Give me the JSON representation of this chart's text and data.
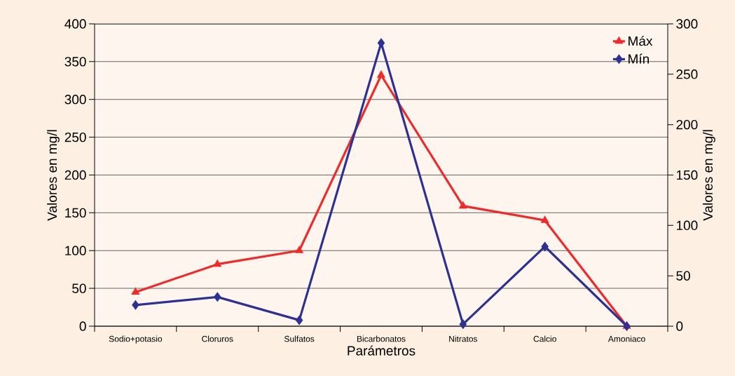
{
  "chart_data": {
    "type": "line",
    "xlabel": "Parámetros",
    "ylabel": "Valores en mg/l",
    "y2label": "Valores en mg/l",
    "categories": [
      "Sodio+potasio",
      "Cloruros",
      "Sulfatos",
      "Bicarbonatos",
      "Nitratos",
      "Calcio",
      "Amoniaco"
    ],
    "series": [
      {
        "name": "Máx",
        "color": "#ee2a2a",
        "marker": "triangle",
        "values": [
          45,
          82,
          100,
          332,
          159,
          140,
          0
        ]
      },
      {
        "name": "Mín",
        "color": "#2e3192",
        "marker": "diamond",
        "axis": "y2",
        "values": [
          21,
          29,
          6,
          281,
          2,
          79,
          0
        ]
      }
    ],
    "ylim": [
      0,
      400
    ],
    "yticks": [
      0,
      50,
      100,
      150,
      200,
      250,
      300,
      350,
      400
    ],
    "y2lim": [
      0,
      300
    ],
    "y2ticks": [
      0,
      50,
      100,
      150,
      200,
      250,
      300
    ],
    "grid": "y",
    "legend": "top right",
    "line_style": "solid"
  }
}
